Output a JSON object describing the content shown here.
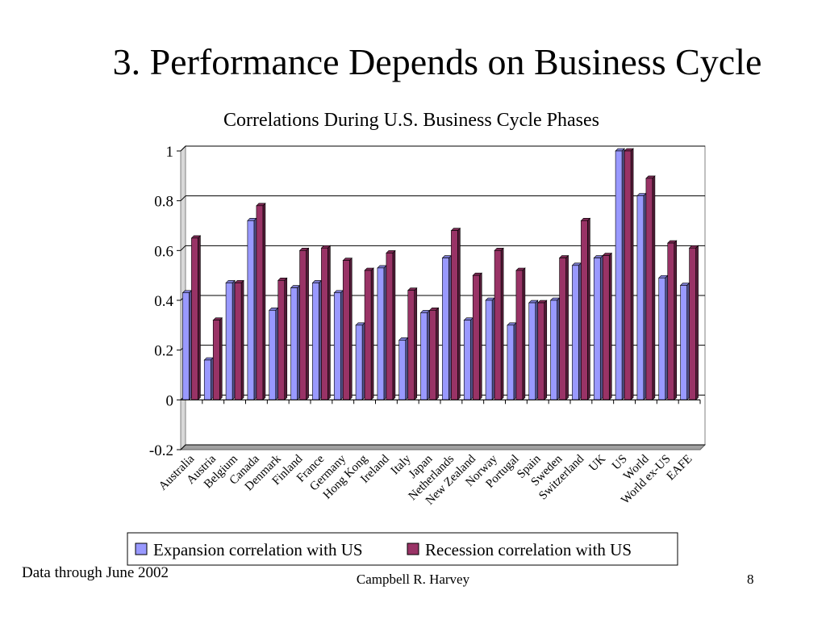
{
  "slide": {
    "title": "3. Performance Depends on Business Cycle",
    "footer_note": "Data through June 2002",
    "author": "Campbell R. Harvey",
    "page_number": "8"
  },
  "chart_data": {
    "type": "bar",
    "title": "Correlations During U.S. Business Cycle Phases",
    "xlabel": "",
    "ylabel": "",
    "ylim": [
      -0.2,
      1
    ],
    "yticks": [
      -0.2,
      0,
      0.2,
      0.4,
      0.6,
      0.8,
      1
    ],
    "ytick_labels": [
      "-0.2",
      "0",
      "0.2",
      "0.4",
      "0.6",
      "0.8",
      "1"
    ],
    "grid": true,
    "legend_position": "bottom",
    "three_d": true,
    "categories": [
      "Australia",
      "Austria",
      "Belgium",
      "Canada",
      "Denmark",
      "Finland",
      "France",
      "Germany",
      "Hong Kong",
      "Ireland",
      "Italy",
      "Japan",
      "Netherlands",
      "New Zealand",
      "Norway",
      "Portugal",
      "Spain",
      "Sweden",
      "Switzerland",
      "UK",
      "US",
      "World",
      "World ex-US",
      "EAFE"
    ],
    "series": [
      {
        "name": "Expansion correlation with US",
        "color": "#9999ff",
        "values": [
          0.43,
          0.16,
          0.47,
          0.72,
          0.36,
          0.45,
          0.47,
          0.43,
          0.3,
          0.53,
          0.24,
          0.35,
          0.57,
          0.32,
          0.4,
          0.3,
          0.39,
          0.4,
          0.54,
          0.57,
          1.0,
          0.82,
          0.49,
          0.46
        ]
      },
      {
        "name": "Recession correlation with US",
        "color": "#993366",
        "values": [
          0.65,
          0.32,
          0.47,
          0.78,
          0.48,
          0.6,
          0.61,
          0.56,
          0.52,
          0.59,
          0.44,
          0.36,
          0.68,
          0.5,
          0.6,
          0.52,
          0.39,
          0.57,
          0.72,
          0.58,
          1.0,
          0.89,
          0.63,
          0.61
        ]
      }
    ]
  }
}
